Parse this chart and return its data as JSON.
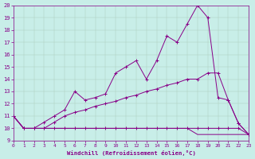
{
  "xlabel": "Windchill (Refroidissement éolien,°C)",
  "bg_color": "#c8eee8",
  "line_color": "#880088",
  "xlim": [
    0,
    23
  ],
  "ylim": [
    9,
    20
  ],
  "yticks": [
    9,
    10,
    11,
    12,
    13,
    14,
    15,
    16,
    17,
    18,
    19,
    20
  ],
  "xticks": [
    0,
    1,
    2,
    3,
    4,
    5,
    6,
    7,
    8,
    9,
    10,
    11,
    12,
    13,
    14,
    15,
    16,
    17,
    18,
    19,
    20,
    21,
    22,
    23
  ],
  "line1_x": [
    0,
    1,
    2,
    3,
    4,
    5,
    6,
    7,
    8,
    9,
    10,
    11,
    12,
    13,
    14,
    15,
    16,
    17,
    18,
    19,
    20,
    21,
    22,
    23
  ],
  "line1_y": [
    11,
    10,
    10,
    10,
    10,
    10,
    10,
    10,
    10,
    10,
    10,
    10,
    10,
    10,
    10,
    10,
    10,
    10,
    9.5,
    9.5,
    9.5,
    9.5,
    9.5,
    9.5
  ],
  "line2_x": [
    0,
    1,
    2,
    3,
    4,
    5,
    6,
    7,
    8,
    9,
    10,
    11,
    12,
    13,
    14,
    15,
    16,
    17,
    18,
    19,
    20,
    21,
    22,
    23
  ],
  "line2_y": [
    11,
    10,
    10,
    10,
    10.5,
    11,
    11.3,
    11.5,
    11.8,
    12,
    12.2,
    12.5,
    12.7,
    13,
    13.2,
    13.5,
    13.7,
    14,
    14,
    14.5,
    14.5,
    12.3,
    10.4,
    9.5
  ],
  "line3_x": [
    0,
    1,
    2,
    3,
    4,
    5,
    6,
    7,
    8,
    9,
    10,
    11,
    12,
    13,
    14,
    15,
    16,
    17,
    18,
    19,
    20,
    21,
    22,
    23
  ],
  "line3_y": [
    11,
    10,
    10,
    10.5,
    11,
    11.5,
    13,
    12.3,
    12.5,
    12.8,
    14.5,
    15,
    15.5,
    14,
    15.5,
    17.5,
    17,
    18.5,
    20,
    19,
    12.5,
    12.3,
    10.4,
    9.5
  ],
  "line4_x": [
    0,
    1,
    2,
    3,
    4,
    5,
    6,
    7,
    8,
    9,
    10,
    11,
    12,
    13,
    14,
    15,
    16,
    17,
    18,
    19,
    20,
    21,
    22,
    23
  ],
  "line4_y": [
    11,
    10,
    10,
    10,
    10,
    10,
    10,
    10,
    10,
    10,
    10,
    10,
    10,
    10,
    10,
    10,
    10,
    10,
    10,
    10,
    10,
    10,
    10,
    9.5
  ]
}
